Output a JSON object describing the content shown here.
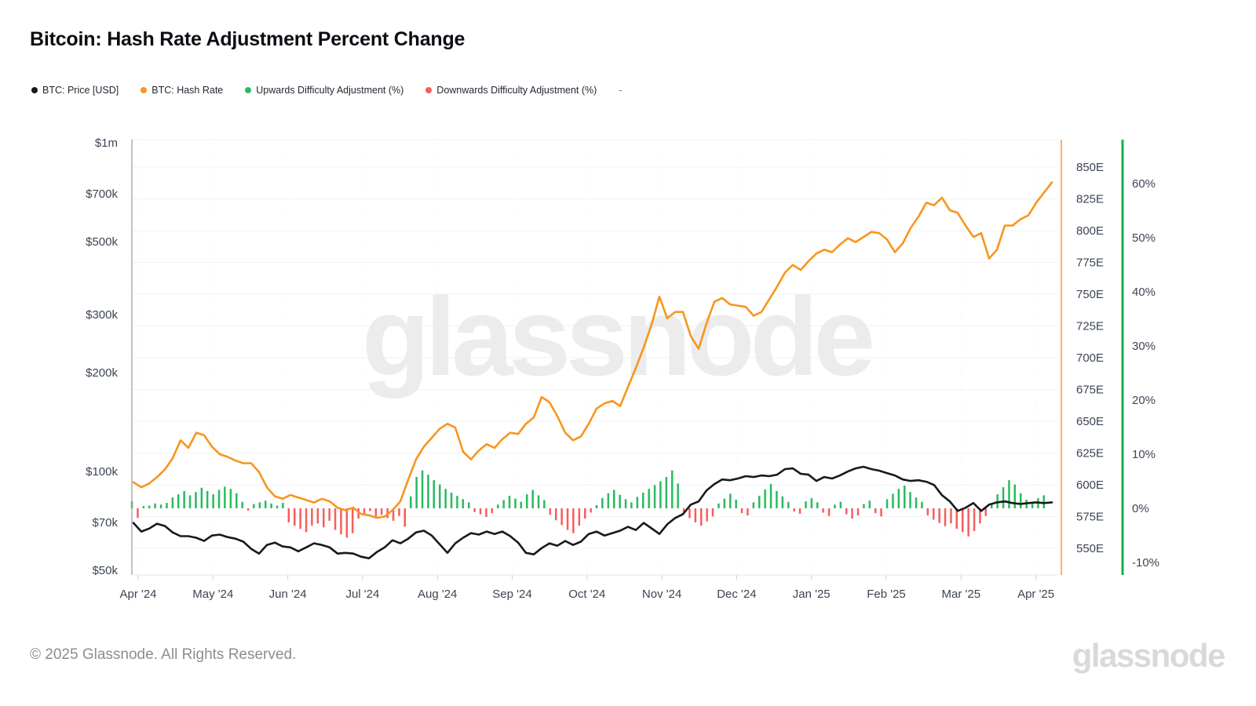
{
  "title": "Bitcoin: Hash Rate Adjustment Percent Change",
  "legend": [
    {
      "label": "BTC: Price [USD]",
      "color": "#17191e"
    },
    {
      "label": "BTC: Hash Rate",
      "color": "#f8951d"
    },
    {
      "label": "Upwards Difficulty Adjustment (%)",
      "color": "#2abb5f"
    },
    {
      "label": "Downwards Difficulty Adjustment (%)",
      "color": "#f75d5d"
    },
    {
      "label": "-",
      "color": null
    }
  ],
  "watermark": "glassnode",
  "footer": {
    "copyright": "© 2025 Glassnode. All Rights Reserved.",
    "logo": "glassnode"
  },
  "chart_data": {
    "type": "mixed",
    "title": "Bitcoin: Hash Rate Adjustment Percent Change",
    "x_range": [
      "Apr '24",
      "Apr '25"
    ],
    "months": [
      "Apr '24",
      "May '24",
      "Jun '24",
      "Jul '24",
      "Aug '24",
      "Sep '24",
      "Oct '24",
      "Nov '24",
      "Dec '24",
      "Jan '25",
      "Feb '25",
      "Mar '25",
      "Apr '25"
    ],
    "grid": "horizontal",
    "legend_position": "top-left",
    "axes": {
      "price": {
        "side": "left",
        "scale": "log",
        "ticks": [
          "$1m",
          "$700k",
          "$500k",
          "$300k",
          "$200k",
          "$100k",
          "$70k",
          "$50k"
        ],
        "tick_values": [
          1000,
          700,
          500,
          300,
          200,
          100,
          70,
          50
        ],
        "unit": "USD"
      },
      "hash": {
        "side": "right",
        "scale": "linear",
        "ticks": [
          "850E",
          "825E",
          "800E",
          "775E",
          "750E",
          "725E",
          "700E",
          "675E",
          "650E",
          "625E",
          "600E",
          "575E",
          "550E"
        ],
        "tick_values": [
          850,
          825,
          800,
          775,
          750,
          725,
          700,
          675,
          650,
          625,
          600,
          575,
          550
        ],
        "unit": "EH/s",
        "axis_color": "#f8a13c"
      },
      "percent": {
        "side": "far-right",
        "scale": "linear",
        "ticks": [
          "60%",
          "50%",
          "40%",
          "30%",
          "20%",
          "10%",
          "0%",
          "-10%"
        ],
        "tick_values": [
          60,
          50,
          40,
          30,
          20,
          10,
          0,
          -10
        ],
        "unit": "%",
        "axis_color": "#10b14c"
      }
    },
    "series": [
      {
        "name": "BTC: Price [USD]",
        "type": "line",
        "axis": "price",
        "color": "#17191e",
        "unit": "USD thousands",
        "values": [
          69.7,
          65.6,
          67.0,
          69.3,
          68.2,
          65.2,
          63.5,
          63.5,
          62.8,
          61.4,
          63.8,
          64.2,
          63.1,
          62.4,
          61.1,
          58.1,
          56.2,
          59.7,
          60.7,
          59.1,
          58.7,
          57.1,
          58.7,
          60.4,
          59.7,
          58.7,
          56.2,
          56.5,
          56.2,
          55.0,
          54.4,
          56.8,
          58.7,
          61.7,
          60.4,
          62.4,
          65.2,
          66.0,
          63.8,
          60.0,
          56.5,
          60.4,
          62.8,
          64.9,
          64.2,
          65.6,
          64.5,
          65.6,
          63.5,
          60.7,
          56.5,
          55.9,
          58.4,
          60.4,
          59.4,
          61.4,
          59.7,
          61.1,
          64.5,
          65.6,
          63.8,
          64.9,
          66.0,
          67.8,
          66.3,
          69.7,
          67.1,
          64.5,
          69.0,
          72.1,
          74.1,
          79.2,
          81.0,
          87.5,
          91.5,
          94.5,
          94.0,
          95.1,
          96.7,
          96.1,
          97.2,
          96.7,
          97.7,
          101.6,
          102.1,
          98.3,
          97.7,
          93.5,
          96.1,
          95.1,
          97.2,
          99.9,
          102.1,
          103.3,
          101.6,
          100.5,
          98.8,
          97.2,
          94.5,
          93.5,
          94.0,
          93.0,
          90.9,
          84.6,
          81.0,
          75.8,
          77.5,
          80.1,
          75.8,
          79.2,
          80.5,
          81.0,
          80.1,
          79.6,
          80.1,
          80.5,
          80.1,
          80.5
        ]
      },
      {
        "name": "BTC: Hash Rate",
        "type": "line",
        "axis": "hash",
        "color": "#f8951d",
        "unit": "EH/s",
        "values": [
          602,
          598,
          601,
          606,
          612,
          621,
          635,
          629,
          641,
          639,
          630,
          624,
          622,
          619,
          617,
          617,
          610,
          598,
          591,
          589,
          592,
          590,
          588,
          586,
          589,
          587,
          582,
          580,
          582,
          577,
          576,
          574,
          575,
          580,
          587,
          604,
          620,
          630,
          637,
          644,
          648,
          645,
          626,
          620,
          627,
          632,
          629,
          636,
          641,
          640,
          648,
          653,
          669,
          665,
          654,
          641,
          635,
          638,
          648,
          660,
          664,
          666,
          662,
          677,
          692,
          708,
          726,
          748,
          731,
          736,
          736,
          717,
          707,
          727,
          744,
          747,
          742,
          741,
          740,
          733,
          736,
          746,
          756,
          767,
          773,
          769,
          776,
          782,
          785,
          783,
          789,
          794,
          791,
          795,
          799,
          798,
          793,
          783,
          790,
          802,
          811,
          822,
          820,
          826,
          816,
          814,
          804,
          795,
          798,
          778,
          785,
          804,
          804,
          809,
          812,
          822,
          830,
          838
        ]
      },
      {
        "name": "Difficulty Adjustment",
        "type": "bar",
        "axis": "percent",
        "unit": "%",
        "up_name": "Upwards Difficulty Adjustment (%)",
        "down_name": "Downwards Difficulty Adjustment (%)",
        "up_color": "#2abb5f",
        "down_color": "#f75d5d",
        "values": [
          1.3,
          -1.8,
          0.4,
          0.5,
          0.9,
          0.7,
          1.0,
          2.0,
          2.6,
          3.2,
          2.4,
          3.0,
          3.8,
          3.2,
          2.6,
          3.4,
          4.0,
          3.6,
          2.8,
          1.2,
          -0.4,
          0.8,
          1.1,
          1.4,
          0.9,
          0.5,
          1.0,
          -2.6,
          -3.2,
          -3.8,
          -4.4,
          -3.2,
          -2.8,
          -3.5,
          -2.3,
          -4.0,
          -4.8,
          -5.4,
          -4.6,
          -1.9,
          -1.0,
          -0.5,
          -1.5,
          -1.2,
          -1.8,
          -2.3,
          -1.4,
          -3.4,
          2.2,
          5.8,
          7.0,
          6.2,
          5.2,
          4.4,
          3.6,
          2.9,
          2.3,
          1.7,
          1.1,
          -0.7,
          -1.1,
          -1.6,
          -0.9,
          0.7,
          1.5,
          2.3,
          1.8,
          1.2,
          2.6,
          3.4,
          2.4,
          1.5,
          -1.2,
          -2.2,
          -3.1,
          -4.0,
          -4.6,
          -3.2,
          -1.9,
          -0.8,
          0.6,
          1.9,
          2.8,
          3.4,
          2.5,
          1.7,
          1.1,
          2.1,
          2.9,
          3.6,
          4.3,
          5.0,
          5.8,
          7.0,
          4.6,
          -0.7,
          -1.8,
          -2.6,
          -3.2,
          -2.4,
          -1.5,
          0.9,
          1.8,
          2.7,
          1.6,
          -0.9,
          -1.3,
          1.1,
          2.3,
          3.5,
          4.5,
          3.2,
          2.2,
          1.2,
          -0.6,
          -1.0,
          1.3,
          1.9,
          1.1,
          -0.8,
          -1.4,
          0.7,
          1.2,
          -1.1,
          -1.9,
          -1.3,
          0.8,
          1.4,
          -0.9,
          -1.5,
          1.7,
          2.7,
          3.6,
          4.2,
          3.0,
          2.0,
          1.2,
          -1.3,
          -2.1,
          -2.7,
          -3.3,
          -2.8,
          -3.8,
          -4.4,
          -5.2,
          -4.2,
          -2.8,
          -1.4,
          0.9,
          2.6,
          3.9,
          5.2,
          4.4,
          2.8,
          1.6,
          1.0,
          1.9,
          2.4
        ]
      }
    ]
  }
}
